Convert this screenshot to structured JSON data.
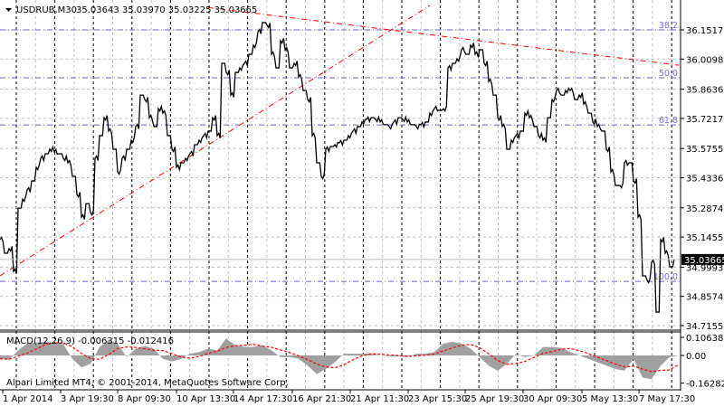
{
  "chart_data": [
    {
      "type": "line",
      "title": "USDRUB,M30",
      "ohlc_header": "35.03643 35.03970 35.03225 35.03665",
      "symbol": "USDRUB",
      "timeframe": "M30",
      "current_price": "35.03665",
      "price_ticks": [
        "36.15170",
        "36.00980",
        "35.86360",
        "35.72170",
        "35.57550",
        "35.43360",
        "35.28740",
        "35.14550",
        "34.99930",
        "34.85740",
        "34.71550"
      ],
      "ylim": [
        34.7,
        36.22
      ],
      "x_tick_labels": [
        "1 Apr 2014",
        "3 Apr 19:30",
        "8 Apr 09:30",
        "10 Apr 13:30",
        "14 Apr 17:30",
        "16 Apr 21:30",
        "21 Apr 11:30",
        "23 Apr 15:30",
        "25 Apr 19:30",
        "30 Apr 09:30",
        "5 May 13:30",
        "7 May 17:30"
      ],
      "close": [
        35.133,
        35.067,
        35.089,
        34.979,
        35.286,
        35.33,
        35.374,
        35.418,
        35.484,
        35.528,
        35.55,
        35.572,
        35.559,
        35.55,
        35.528,
        35.506,
        35.44,
        35.352,
        35.242,
        35.308,
        35.264,
        35.528,
        35.638,
        35.725,
        35.66,
        35.572,
        35.462,
        35.528,
        35.572,
        35.616,
        35.682,
        35.835,
        35.813,
        35.725,
        35.682,
        35.769,
        35.747,
        35.638,
        35.572,
        35.484,
        35.506,
        35.528,
        35.55,
        35.594,
        35.616,
        35.638,
        35.66,
        35.725,
        35.638,
        35.989,
        35.945,
        35.835,
        35.945,
        35.967,
        35.989,
        36.033,
        36.077,
        36.143,
        36.187,
        36.174,
        36.033,
        35.967,
        36.099,
        36.055,
        35.967,
        35.989,
        35.923,
        35.857,
        35.813,
        35.638,
        35.506,
        35.44,
        35.572,
        35.585,
        35.594,
        35.603,
        35.616,
        35.638,
        35.66,
        35.682,
        35.704,
        35.717,
        35.725,
        35.717,
        35.704,
        35.691,
        35.682,
        35.704,
        35.725,
        35.717,
        35.704,
        35.691,
        35.682,
        35.691,
        35.704,
        35.747,
        35.769,
        35.761,
        35.769,
        35.967,
        35.989,
        36.011,
        36.055,
        36.033,
        36.077,
        36.033,
        36.055,
        35.989,
        35.901,
        35.835,
        35.725,
        35.682,
        35.572,
        35.616,
        35.638,
        35.66,
        35.747,
        35.725,
        35.682,
        35.638,
        35.616,
        35.725,
        35.813,
        35.857,
        35.835,
        35.857,
        35.857,
        35.813,
        35.835,
        35.791,
        35.747,
        35.704,
        35.682,
        35.66,
        35.572,
        35.462,
        35.396,
        35.396,
        35.506,
        35.506,
        35.418,
        35.242,
        34.957,
        34.935,
        35.023,
        34.781,
        35.133,
        35.067,
        35.001,
        35.037
      ],
      "fibonacci": {
        "levels": [
          {
            "label": "38.2",
            "price": 36.1517
          },
          {
            "label": "50.0",
            "price": 35.919
          },
          {
            "label": "61.8",
            "price": 35.69
          },
          {
            "label": "100.0",
            "price": 34.93
          }
        ],
        "color": "#6b5fd0"
      },
      "trendlines": [
        {
          "from": [
            0,
            34.957
          ],
          "to": [
            95,
            36.27
          ],
          "color": "#ff0000"
        },
        {
          "from": [
            46,
            36.26
          ],
          "to": [
            150,
            35.98
          ],
          "color": "#ff0000"
        }
      ],
      "grid": true,
      "colors": {
        "price": "#000000",
        "grid_major": "#000000",
        "grid_minor": "#c0c0c0",
        "current_price_bg": "#000000"
      }
    },
    {
      "type": "bar",
      "title": "MACD(12,26,9) -0.006315 -0.012416",
      "indicator": "MACD",
      "params": "12,26,9",
      "y_ticks": [
        "0.106384",
        "0.00",
        "-0.162822"
      ],
      "ylim": [
        -0.162822,
        0.106384
      ],
      "histogram": [
        -0.02,
        -0.025,
        0.03,
        0.07,
        0.075,
        0.08,
        0.075,
        0.065,
        -0.02,
        -0.07,
        -0.05,
        0.05,
        0.09,
        0.07,
        -0.01,
        0.04,
        0.055,
        0.04,
        -0.02,
        -0.035,
        -0.02,
        0.01,
        0.02,
        0.04,
        0.03,
        0.1,
        0.06,
        0.05,
        0.05,
        0.06,
        0.03,
        -0.01,
        -0.01,
        -0.02,
        -0.06,
        -0.11,
        -0.08,
        -0.04,
        0.01,
        0.01,
        0.01,
        0.01,
        0.0,
        -0.005,
        -0.005,
        -0.01,
        0.01,
        0.01,
        0.02,
        0.07,
        0.08,
        0.07,
        0.04,
        -0.01,
        -0.06,
        -0.09,
        -0.05,
        0.01,
        -0.01,
        0.0,
        0.05,
        0.05,
        0.045,
        0.02,
        0.0,
        -0.02,
        -0.04,
        -0.06,
        -0.08,
        -0.09,
        -0.02,
        -0.13,
        -0.14,
        -0.06,
        -0.01,
        0.0
      ],
      "colors": {
        "histogram": "#a0a0a0",
        "signal": "#ff0000"
      }
    }
  ],
  "footer": {
    "copyright": "Alpari Limited MT4, © 2001-2014, MetaQuotes Software Corp."
  },
  "header": {
    "menu_icon": "triangle-down-icon"
  }
}
